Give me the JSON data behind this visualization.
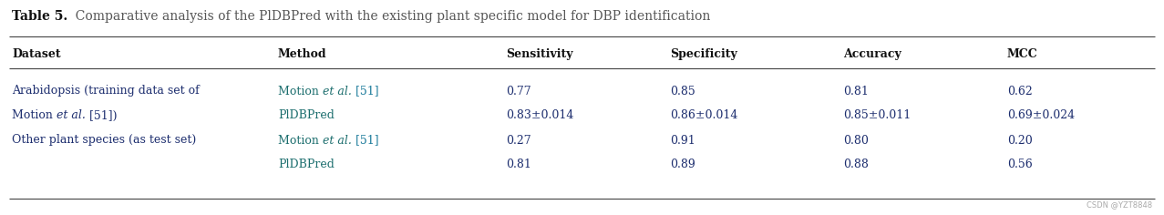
{
  "title_bold": "Table 5.",
  "title_rest": "  Comparative analysis of the PlDBPred with the existing plant specific model for DBP identification",
  "headers": [
    "Dataset",
    "Method",
    "Sensitivity",
    "Specificity",
    "Accuracy",
    "MCC"
  ],
  "rows": [
    [
      "Arabidopsis (training data set of",
      "Motion et al. [51]",
      "0.77",
      "0.85",
      "0.81",
      "0.62"
    ],
    [
      "Motion et al. [51])",
      "PlDBPred",
      "0.83±0.014",
      "0.86±0.014",
      "0.85±0.011",
      "0.69±0.024"
    ],
    [
      "Other plant species (as test set)",
      "Motion et al. [51]",
      "0.27",
      "0.91",
      "0.80",
      "0.20"
    ],
    [
      "",
      "PlDBPred",
      "0.81",
      "0.89",
      "0.88",
      "0.56"
    ]
  ],
  "col_x_inches": [
    0.13,
    3.05,
    5.55,
    7.35,
    9.25,
    11.05
  ],
  "watermark": "CSDN @YZT8848",
  "bg_color": "#ffffff",
  "text_color": "#1c2d6e",
  "header_color": "#111111",
  "title_bold_color": "#111111",
  "title_rest_color": "#555555",
  "method_color": "#1c6e6e",
  "line_color": "#444444",
  "watermark_color": "#aaaaaa"
}
